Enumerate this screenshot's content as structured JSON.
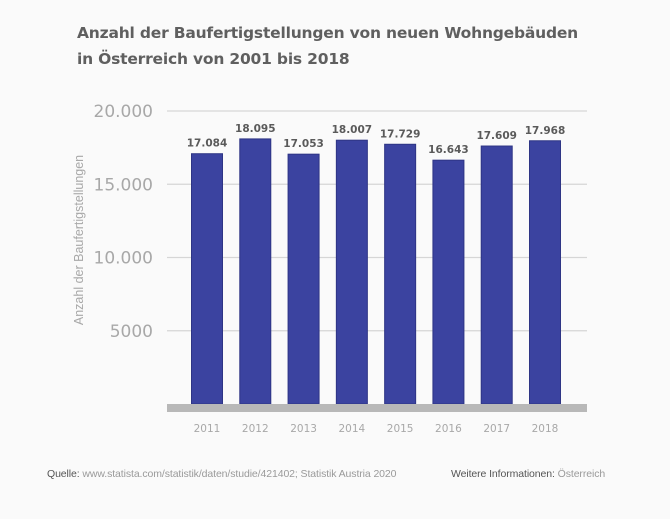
{
  "chart_data": {
    "type": "bar",
    "title": "Anzahl der Baufertigstellungen von neuen Wohngebäuden in Österreich von 2001 bis 2018",
    "title_lines": [
      "Anzahl der Baufertigstellungen von neuen Wohngebäuden",
      "in Österreich von 2001 bis 2018"
    ],
    "categories": [
      "2011",
      "2012",
      "2013",
      "2014",
      "2015",
      "2016",
      "2017",
      "2018"
    ],
    "values": [
      17084,
      18095,
      17053,
      18007,
      17729,
      16643,
      17609,
      17968
    ],
    "value_labels": [
      "17.084",
      "18.095",
      "17.053",
      "18.007",
      "17.729",
      "16.643",
      "17.609",
      "17.968"
    ],
    "xlabel": "",
    "ylabel": "Anzahl der Baufertigstellungen",
    "ylim": [
      0,
      20000
    ],
    "yticks": [
      5000,
      10000,
      15000,
      20000
    ],
    "ytick_labels": [
      "5000",
      "10.000",
      "15.000",
      "20.000"
    ],
    "grid": true,
    "legend": "none",
    "colors": {
      "bar": "#3b43a0",
      "bar_edge": "#2e3585",
      "grid": "#d6d6d6",
      "axis": "#b8b8b8",
      "tick_text": "#a8a8a8",
      "value_text": "#5a5a5a"
    }
  },
  "footer": {
    "source_label": "Quelle:",
    "source_value": "www.statista.com/statistik/daten/studie/421402; Statistik Austria 2020",
    "info_label": "Weitere Informationen:",
    "info_value": "Österreich"
  }
}
